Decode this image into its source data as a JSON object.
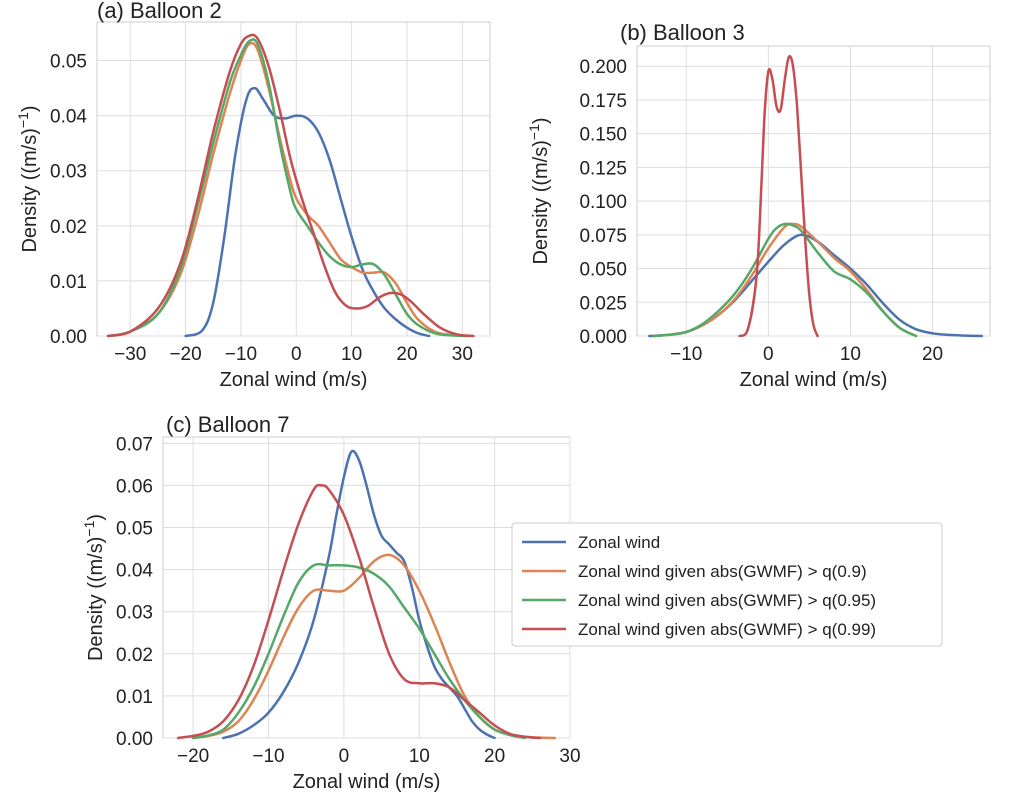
{
  "legend": {
    "entries": [
      {
        "label": "Zonal wind",
        "color": "#4c72b0"
      },
      {
        "label": "Zonal wind given abs(GWMF) > q(0.9)",
        "color": "#dd8452"
      },
      {
        "label": "Zonal wind given abs(GWMF) > q(0.95)",
        "color": "#55a868"
      },
      {
        "label": "Zonal wind given abs(GWMF) > q(0.99)",
        "color": "#c44e52"
      }
    ]
  },
  "chart_data": [
    {
      "type": "line",
      "title": "(a) Balloon 2",
      "xlabel": "Zonal wind (m/s)",
      "ylabel_main": "Density ((m/s)",
      "ylabel_sup": "−1",
      "ylabel_close": ")",
      "xlim": [
        -36,
        35
      ],
      "ylim": [
        0,
        0.057
      ],
      "grid": true,
      "xticks": [
        -30,
        -20,
        -10,
        0,
        10,
        20,
        30
      ],
      "xtick_labels": [
        "−30",
        "−20",
        "−10",
        "0",
        "10",
        "20",
        "30"
      ],
      "yticks": [
        0,
        0.01,
        0.02,
        0.03,
        0.04,
        0.05
      ],
      "ytick_labels": [
        "0.00",
        "0.01",
        "0.02",
        "0.03",
        "0.04",
        "0.05"
      ],
      "series": [
        {
          "name": "Zonal wind",
          "color": "#4c72b0",
          "x": [
            -20,
            -17,
            -15,
            -13,
            -11,
            -9,
            -7.5,
            -6,
            -4,
            -2,
            0,
            2,
            4,
            6,
            8,
            10,
            12,
            14,
            16,
            18,
            20,
            22,
            24
          ],
          "y": [
            0,
            0.001,
            0.006,
            0.018,
            0.033,
            0.043,
            0.045,
            0.043,
            0.04,
            0.0395,
            0.04,
            0.0395,
            0.037,
            0.032,
            0.025,
            0.018,
            0.012,
            0.008,
            0.005,
            0.003,
            0.0015,
            0.0005,
            0
          ]
        },
        {
          "name": "Zonal wind given abs(GWMF) > q(0.9)",
          "color": "#dd8452",
          "x": [
            -34,
            -30,
            -25,
            -21,
            -18,
            -15,
            -12,
            -10,
            -8.5,
            -7,
            -5,
            -3,
            -1,
            0,
            2,
            4,
            6,
            8,
            10,
            12,
            14,
            16,
            18,
            20,
            22,
            25,
            28,
            31
          ],
          "y": [
            0,
            0.0008,
            0.004,
            0.011,
            0.021,
            0.033,
            0.044,
            0.05,
            0.053,
            0.052,
            0.045,
            0.036,
            0.028,
            0.025,
            0.022,
            0.02,
            0.017,
            0.014,
            0.0125,
            0.0115,
            0.0115,
            0.0115,
            0.0095,
            0.006,
            0.003,
            0.0008,
            0.0002,
            0
          ]
        },
        {
          "name": "Zonal wind given abs(GWMF) > q(0.95)",
          "color": "#55a868",
          "x": [
            -34,
            -30,
            -25,
            -21,
            -18,
            -15,
            -12,
            -10,
            -8.5,
            -7,
            -5,
            -3,
            -1,
            0,
            2,
            4,
            6,
            8,
            10,
            12,
            14,
            16,
            18,
            20,
            22,
            25,
            28,
            31
          ],
          "y": [
            0,
            0.0008,
            0.004,
            0.012,
            0.023,
            0.035,
            0.046,
            0.051,
            0.0535,
            0.053,
            0.046,
            0.035,
            0.026,
            0.023,
            0.02,
            0.017,
            0.0145,
            0.013,
            0.0125,
            0.013,
            0.013,
            0.011,
            0.0075,
            0.004,
            0.002,
            0.0005,
            0.0001,
            0
          ]
        },
        {
          "name": "Zonal wind given abs(GWMF) > q(0.99)",
          "color": "#c44e52",
          "x": [
            -34,
            -30,
            -25,
            -21,
            -18,
            -15,
            -12,
            -10,
            -8.5,
            -7,
            -5,
            -3,
            -1,
            1,
            3,
            5,
            7,
            9,
            11,
            13,
            15,
            17,
            19,
            21,
            23,
            26,
            29,
            32
          ],
          "y": [
            0,
            0.0008,
            0.005,
            0.013,
            0.024,
            0.037,
            0.048,
            0.053,
            0.0545,
            0.054,
            0.049,
            0.041,
            0.032,
            0.025,
            0.019,
            0.013,
            0.008,
            0.0055,
            0.005,
            0.0055,
            0.007,
            0.0078,
            0.0075,
            0.006,
            0.004,
            0.0015,
            0.0003,
            0
          ]
        }
      ]
    },
    {
      "type": "line",
      "title": "(b) Balloon 3",
      "xlabel": "Zonal wind (m/s)",
      "ylabel_main": "Density ((m/s)",
      "ylabel_sup": "−1",
      "ylabel_close": ")",
      "xlim": [
        -16,
        27
      ],
      "ylim": [
        0,
        0.215
      ],
      "grid": true,
      "xticks": [
        -10,
        0,
        10,
        20
      ],
      "xtick_labels": [
        "−10",
        "0",
        "10",
        "20"
      ],
      "yticks": [
        0,
        0.025,
        0.05,
        0.075,
        0.1,
        0.125,
        0.15,
        0.175,
        0.2
      ],
      "ytick_labels": [
        "0.000",
        "0.025",
        "0.050",
        "0.075",
        "0.100",
        "0.125",
        "0.150",
        "0.175",
        "0.200"
      ],
      "series": [
        {
          "name": "Zonal wind",
          "color": "#4c72b0",
          "x": [
            -14.5,
            -12,
            -10,
            -8,
            -6,
            -4,
            -2,
            0,
            2,
            4,
            6,
            8,
            10,
            12,
            14,
            16,
            18,
            20,
            22,
            24,
            26
          ],
          "y": [
            0,
            0.001,
            0.003,
            0.008,
            0.016,
            0.027,
            0.041,
            0.055,
            0.068,
            0.075,
            0.07,
            0.06,
            0.05,
            0.038,
            0.024,
            0.012,
            0.005,
            0.002,
            0.0008,
            0.0003,
            0
          ]
        },
        {
          "name": "Zonal wind given abs(GWMF) > q(0.9)",
          "color": "#dd8452",
          "x": [
            -14,
            -12,
            -10,
            -8,
            -6,
            -4,
            -2,
            0,
            2,
            3,
            4,
            6,
            8,
            10,
            12,
            14,
            16,
            18
          ],
          "y": [
            0,
            0.001,
            0.003,
            0.008,
            0.016,
            0.028,
            0.045,
            0.065,
            0.081,
            0.083,
            0.081,
            0.07,
            0.058,
            0.048,
            0.034,
            0.018,
            0.006,
            0
          ]
        },
        {
          "name": "Zonal wind given abs(GWMF) > q(0.95)",
          "color": "#55a868",
          "x": [
            -14,
            -12,
            -10,
            -8,
            -6,
            -4,
            -2,
            0,
            1,
            2,
            3,
            4,
            6,
            8,
            10,
            12,
            14,
            16,
            18
          ],
          "y": [
            0,
            0.001,
            0.003,
            0.009,
            0.019,
            0.032,
            0.05,
            0.072,
            0.08,
            0.083,
            0.082,
            0.078,
            0.062,
            0.048,
            0.042,
            0.032,
            0.018,
            0.006,
            0
          ]
        },
        {
          "name": "Zonal wind given abs(GWMF) > q(0.99)",
          "color": "#c44e52",
          "x": [
            -3.5,
            -2.5,
            -1.5,
            -1,
            -0.5,
            0,
            0.5,
            1,
            1.5,
            2,
            2.5,
            3,
            3.5,
            4,
            4.5,
            5,
            5.5,
            6
          ],
          "y": [
            0,
            0.005,
            0.04,
            0.09,
            0.16,
            0.196,
            0.19,
            0.17,
            0.168,
            0.19,
            0.207,
            0.2,
            0.17,
            0.12,
            0.07,
            0.03,
            0.008,
            0
          ]
        }
      ]
    },
    {
      "type": "line",
      "title": "(c) Balloon 7",
      "xlabel": "Zonal wind (m/s)",
      "ylabel_main": "Density ((m/s)",
      "ylabel_sup": "−1",
      "ylabel_close": ")",
      "xlim": [
        -24,
        30
      ],
      "ylim": [
        0,
        0.0715
      ],
      "grid": true,
      "xticks": [
        -20,
        -10,
        0,
        10,
        20,
        30
      ],
      "xtick_labels": [
        "−20",
        "−10",
        "0",
        "10",
        "20",
        "30"
      ],
      "yticks": [
        0,
        0.01,
        0.02,
        0.03,
        0.04,
        0.05,
        0.06,
        0.07
      ],
      "ytick_labels": [
        "0.00",
        "0.01",
        "0.02",
        "0.03",
        "0.04",
        "0.05",
        "0.06",
        "0.07"
      ],
      "series": [
        {
          "name": "Zonal wind",
          "color": "#4c72b0",
          "x": [
            -16,
            -14,
            -12,
            -10,
            -8,
            -6,
            -4,
            -2,
            -1,
            0,
            1,
            2,
            3,
            4,
            5,
            6,
            7,
            8,
            9,
            10,
            11,
            12,
            13,
            14,
            15,
            16,
            17,
            18,
            19,
            20
          ],
          "y": [
            0,
            0.001,
            0.003,
            0.006,
            0.011,
            0.018,
            0.028,
            0.043,
            0.053,
            0.062,
            0.068,
            0.066,
            0.06,
            0.053,
            0.048,
            0.046,
            0.044,
            0.042,
            0.036,
            0.028,
            0.022,
            0.017,
            0.014,
            0.012,
            0.01,
            0.007,
            0.004,
            0.002,
            0.0008,
            0
          ]
        },
        {
          "name": "Zonal wind given abs(GWMF) > q(0.9)",
          "color": "#dd8452",
          "x": [
            -20,
            -18,
            -16,
            -14,
            -12,
            -10,
            -8,
            -6,
            -4,
            -2,
            0,
            2,
            4,
            6,
            8,
            10,
            12,
            14,
            16,
            18,
            20,
            22,
            24,
            26,
            28
          ],
          "y": [
            0,
            0.0005,
            0.0015,
            0.004,
            0.009,
            0.016,
            0.024,
            0.031,
            0.035,
            0.035,
            0.035,
            0.038,
            0.042,
            0.0435,
            0.041,
            0.035,
            0.027,
            0.018,
            0.01,
            0.005,
            0.002,
            0.0008,
            0.0003,
            0.0001,
            0
          ]
        },
        {
          "name": "Zonal wind given abs(GWMF) > q(0.95)",
          "color": "#55a868",
          "x": [
            -20,
            -18,
            -16,
            -14,
            -12,
            -10,
            -8,
            -6,
            -4,
            -2,
            0,
            2,
            4,
            6,
            8,
            10,
            12,
            14,
            16,
            18,
            20,
            22,
            24
          ],
          "y": [
            0,
            0.0006,
            0.002,
            0.006,
            0.012,
            0.02,
            0.029,
            0.037,
            0.041,
            0.041,
            0.041,
            0.0405,
            0.039,
            0.036,
            0.031,
            0.026,
            0.02,
            0.014,
            0.009,
            0.005,
            0.002,
            0.0007,
            0
          ]
        },
        {
          "name": "Zonal wind given abs(GWMF) > q(0.99)",
          "color": "#c44e52",
          "x": [
            -22,
            -20,
            -18,
            -16,
            -14,
            -12,
            -10,
            -8,
            -6,
            -4,
            -3,
            -2,
            0,
            2,
            4,
            6,
            8,
            10,
            12,
            14,
            16,
            18,
            20,
            22,
            24,
            26
          ],
          "y": [
            0,
            0.0005,
            0.0015,
            0.004,
            0.009,
            0.017,
            0.028,
            0.04,
            0.051,
            0.059,
            0.06,
            0.059,
            0.053,
            0.043,
            0.031,
            0.02,
            0.014,
            0.013,
            0.013,
            0.012,
            0.009,
            0.006,
            0.003,
            0.001,
            0.0003,
            0
          ]
        }
      ]
    }
  ]
}
